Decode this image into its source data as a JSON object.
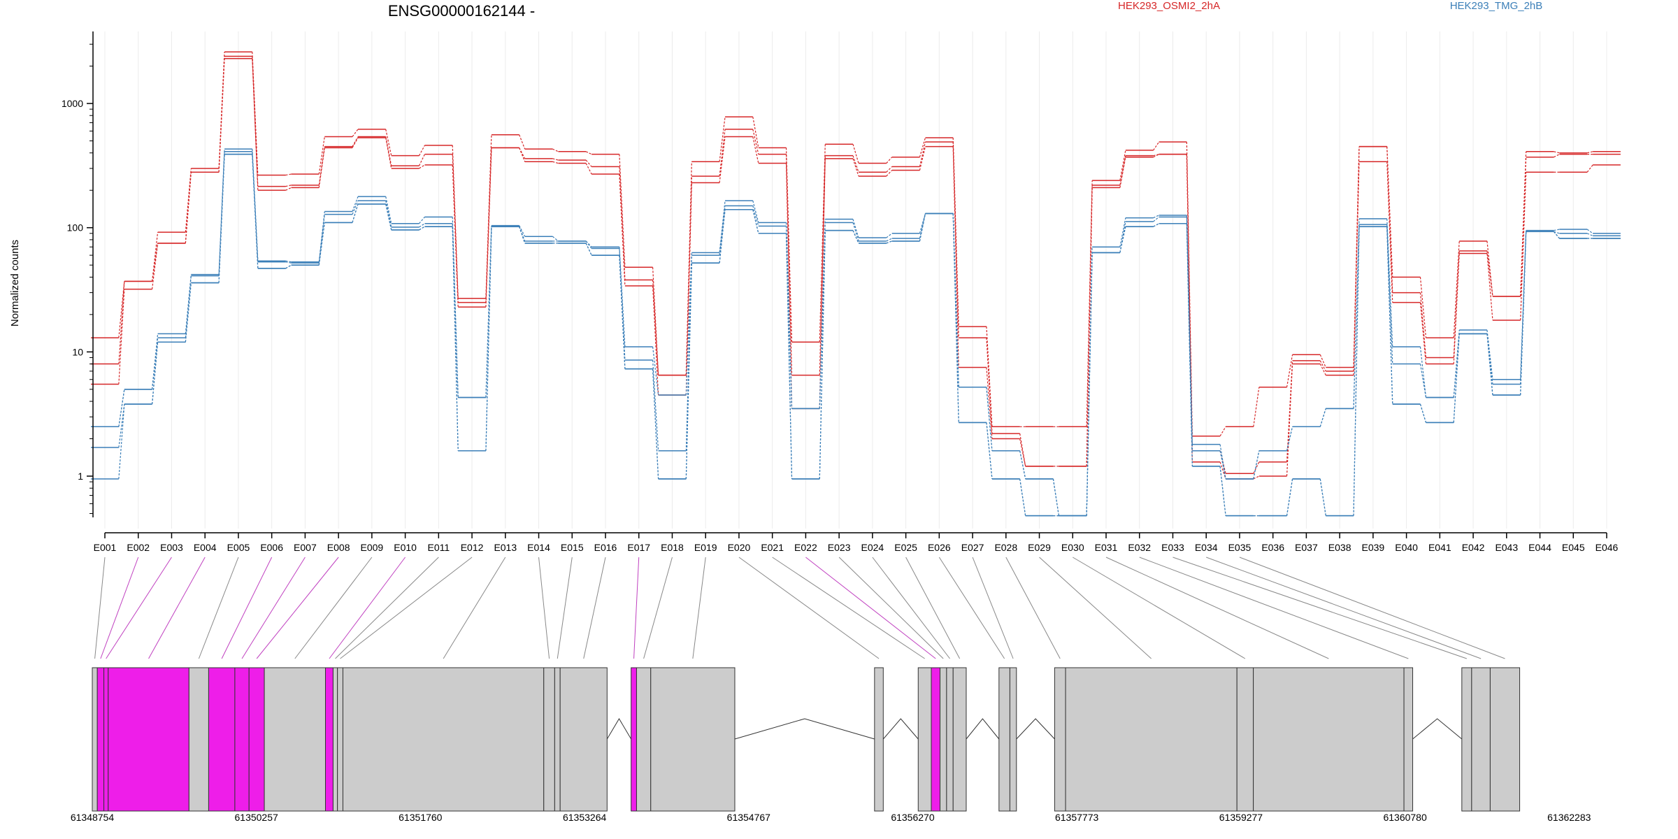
{
  "chart_data": {
    "type": "line",
    "title": "ENSG00000162144 -",
    "ylabel": "Normalized counts",
    "xlabel": "",
    "yscale": "log",
    "ylim": [
      0.45,
      3500
    ],
    "yticks": [
      1,
      10,
      100,
      1000
    ],
    "ytick_labels": [
      "1",
      "10",
      "100",
      "1000"
    ],
    "colors": {
      "OSMI2": "#d62728",
      "TMG": "#3b7fb8",
      "exon_highlight": "#ee1ee9",
      "exon_normal": "#cccccc"
    },
    "legend": [
      {
        "label": "HEK293_OSMI2_2hA",
        "color": "#d62728"
      },
      {
        "label": "HEK293_TMG_2hB",
        "color": "#3b7fb8"
      }
    ],
    "categories": [
      "E001",
      "E002",
      "E003",
      "E004",
      "E005",
      "E006",
      "E007",
      "E008",
      "E009",
      "E010",
      "E011",
      "E012",
      "E013",
      "E014",
      "E015",
      "E016",
      "E017",
      "E018",
      "E019",
      "E020",
      "E021",
      "E022",
      "E023",
      "E024",
      "E025",
      "E026",
      "E027",
      "E028",
      "E029",
      "E030",
      "E031",
      "E032",
      "E033",
      "E034",
      "E035",
      "E036",
      "E037",
      "E038",
      "E039",
      "E040",
      "E041",
      "E042",
      "E043",
      "E044",
      "E045",
      "E046"
    ],
    "series": [
      {
        "group": "OSMI2",
        "values": [
          13,
          37,
          92,
          300,
          2600,
          265,
          270,
          540,
          620,
          380,
          460,
          27,
          560,
          430,
          410,
          390,
          48,
          6.5,
          340,
          780,
          440,
          12,
          470,
          330,
          370,
          530,
          16,
          2.5,
          2.5,
          2.5,
          240,
          420,
          490,
          2.1,
          2.5,
          5.2,
          9.5,
          7.5,
          450,
          40,
          13,
          78,
          28,
          410,
          400,
          410
        ]
      },
      {
        "group": "OSMI2",
        "values": [
          8,
          37,
          75,
          280,
          2400,
          215,
          220,
          450,
          540,
          315,
          390,
          25,
          440,
          360,
          350,
          310,
          38,
          6.5,
          260,
          620,
          390,
          6.5,
          380,
          280,
          310,
          490,
          13,
          2.2,
          1.2,
          1.2,
          220,
          380,
          390,
          1.6,
          1.05,
          1.3,
          8.5,
          7,
          450,
          30,
          9,
          65,
          28,
          370,
          390,
          390
        ]
      },
      {
        "group": "OSMI2",
        "values": [
          5.5,
          32,
          75,
          280,
          2300,
          200,
          210,
          440,
          530,
          300,
          320,
          23,
          440,
          340,
          330,
          270,
          34,
          4.5,
          230,
          540,
          330,
          3.5,
          360,
          260,
          290,
          450,
          7.5,
          2,
          1.2,
          1.2,
          210,
          370,
          390,
          1.3,
          0.95,
          1,
          8,
          6.5,
          340,
          25,
          8,
          62,
          18,
          280,
          280,
          320
        ]
      },
      {
        "group": "TMG",
        "values": [
          2.5,
          5,
          14,
          42,
          430,
          54,
          53,
          135,
          178,
          108,
          122,
          4.3,
          104,
          85,
          78,
          70,
          11,
          4.5,
          63,
          165,
          110,
          3.5,
          117,
          83,
          90,
          130,
          5.2,
          1.6,
          0.95,
          0.48,
          70,
          120,
          126,
          1.8,
          0.95,
          1.6,
          2.5,
          3.5,
          118,
          11,
          4.3,
          15,
          6,
          95,
          97,
          90
        ]
      },
      {
        "group": "TMG",
        "values": [
          2.5,
          5,
          13,
          41,
          410,
          53,
          52,
          128,
          165,
          101,
          108,
          4.3,
          102,
          78,
          78,
          68,
          8.6,
          1.6,
          60,
          150,
          103,
          3.5,
          110,
          78,
          82,
          130,
          5.2,
          1.6,
          0.95,
          0.48,
          63,
          112,
          122,
          1.6,
          0.95,
          1.6,
          2.5,
          3.5,
          106,
          8,
          4.3,
          14,
          5.5,
          93,
          90,
          86
        ]
      },
      {
        "group": "TMG",
        "values": [
          1.7,
          3.8,
          12,
          36,
          390,
          47,
          50,
          110,
          155,
          96,
          102,
          1.6,
          102,
          75,
          75,
          60,
          7.3,
          0.95,
          52,
          140,
          90,
          0.95,
          95,
          75,
          78,
          130,
          2.7,
          0.95,
          0.48,
          0.48,
          63,
          102,
          108,
          1.2,
          0.48,
          0.48,
          0.95,
          0.48,
          102,
          3.8,
          2.7,
          14,
          4.5,
          93,
          82,
          82
        ]
      },
      {
        "group": "TMG",
        "values": [
          0.95,
          3.8,
          12,
          36,
          390,
          47,
          50,
          110,
          155,
          96,
          102,
          1.6,
          102,
          75,
          75,
          60,
          7.3,
          0.95,
          52,
          140,
          90,
          0.95,
          95,
          75,
          78,
          130,
          2.7,
          0.95,
          0.48,
          0.48,
          63,
          102,
          108,
          1.2,
          0.48,
          0.48,
          0.95,
          0.48,
          102,
          3.8,
          2.7,
          14,
          4.5,
          93,
          82,
          82
        ]
      }
    ],
    "gene_model": {
      "start": 61348754,
      "end": 61362800,
      "coordinate_ticks": [
        61348754,
        61350257,
        61351760,
        61353264,
        61354767,
        61356270,
        61357773,
        61359277,
        61360780,
        61362283
      ],
      "exons": [
        {
          "id": "E001",
          "start": 61348754,
          "end": 61348800,
          "highlight": false
        },
        {
          "id": "E002",
          "start": 61348800,
          "end": 61348860,
          "highlight": true
        },
        {
          "id": "E003",
          "start": 61348860,
          "end": 61348900,
          "highlight": true
        },
        {
          "id": "E004",
          "start": 61348900,
          "end": 61349640,
          "highlight": true
        },
        {
          "id": "E005",
          "start": 61349640,
          "end": 61349820,
          "highlight": false
        },
        {
          "id": "E006",
          "start": 61349820,
          "end": 61350060,
          "highlight": true
        },
        {
          "id": "E007",
          "start": 61350060,
          "end": 61350190,
          "highlight": true
        },
        {
          "id": "E008",
          "start": 61350190,
          "end": 61350330,
          "highlight": true
        },
        {
          "id": "E009",
          "start": 61350330,
          "end": 61350890,
          "highlight": false
        },
        {
          "id": "E010",
          "start": 61350890,
          "end": 61350960,
          "highlight": true
        },
        {
          "id": "E011",
          "start": 61350960,
          "end": 61351000,
          "highlight": false
        },
        {
          "id": "E012",
          "start": 61351000,
          "end": 61351050,
          "highlight": false
        },
        {
          "id": "E013",
          "start": 61351050,
          "end": 61352890,
          "highlight": false
        },
        {
          "id": "E014",
          "start": 61352890,
          "end": 61352990,
          "highlight": false
        },
        {
          "id": "E015",
          "start": 61352990,
          "end": 61353040,
          "highlight": false
        },
        {
          "id": "E016",
          "start": 61353040,
          "end": 61353470,
          "highlight": false
        },
        {
          "id": "E017",
          "start": 61353690,
          "end": 61353740,
          "highlight": true
        },
        {
          "id": "E018",
          "start": 61353740,
          "end": 61353870,
          "highlight": false
        },
        {
          "id": "E019",
          "start": 61353870,
          "end": 61354640,
          "highlight": false
        },
        {
          "id": "E020",
          "start": 61355920,
          "end": 61356000,
          "highlight": false
        },
        {
          "id": "E021",
          "start": 61356320,
          "end": 61356440,
          "highlight": false
        },
        {
          "id": "E022",
          "start": 61356440,
          "end": 61356520,
          "highlight": true
        },
        {
          "id": "E023",
          "start": 61356520,
          "end": 61356580,
          "highlight": false
        },
        {
          "id": "E024",
          "start": 61356580,
          "end": 61356640,
          "highlight": false
        },
        {
          "id": "E025",
          "start": 61356640,
          "end": 61356760,
          "highlight": false
        },
        {
          "id": "E026",
          "start": 61357060,
          "end": 61357160,
          "highlight": false
        },
        {
          "id": "E027",
          "start": 61357160,
          "end": 61357220,
          "highlight": false
        },
        {
          "id": "E028",
          "start": 61357570,
          "end": 61357670,
          "highlight": false
        },
        {
          "id": "E029",
          "start": 61357670,
          "end": 61359240,
          "highlight": false
        },
        {
          "id": "E030",
          "start": 61359240,
          "end": 61359390,
          "highlight": false
        },
        {
          "id": "E031",
          "start": 61359390,
          "end": 61360770,
          "highlight": false
        },
        {
          "id": "E032",
          "start": 61360770,
          "end": 61360850,
          "highlight": false
        },
        {
          "id": "E033",
          "start": 61361300,
          "end": 61361390,
          "highlight": false
        },
        {
          "id": "E034",
          "start": 61361390,
          "end": 61361560,
          "highlight": false
        },
        {
          "id": "E035",
          "start": 61361560,
          "end": 61361830,
          "highlight": false
        }
      ]
    }
  }
}
